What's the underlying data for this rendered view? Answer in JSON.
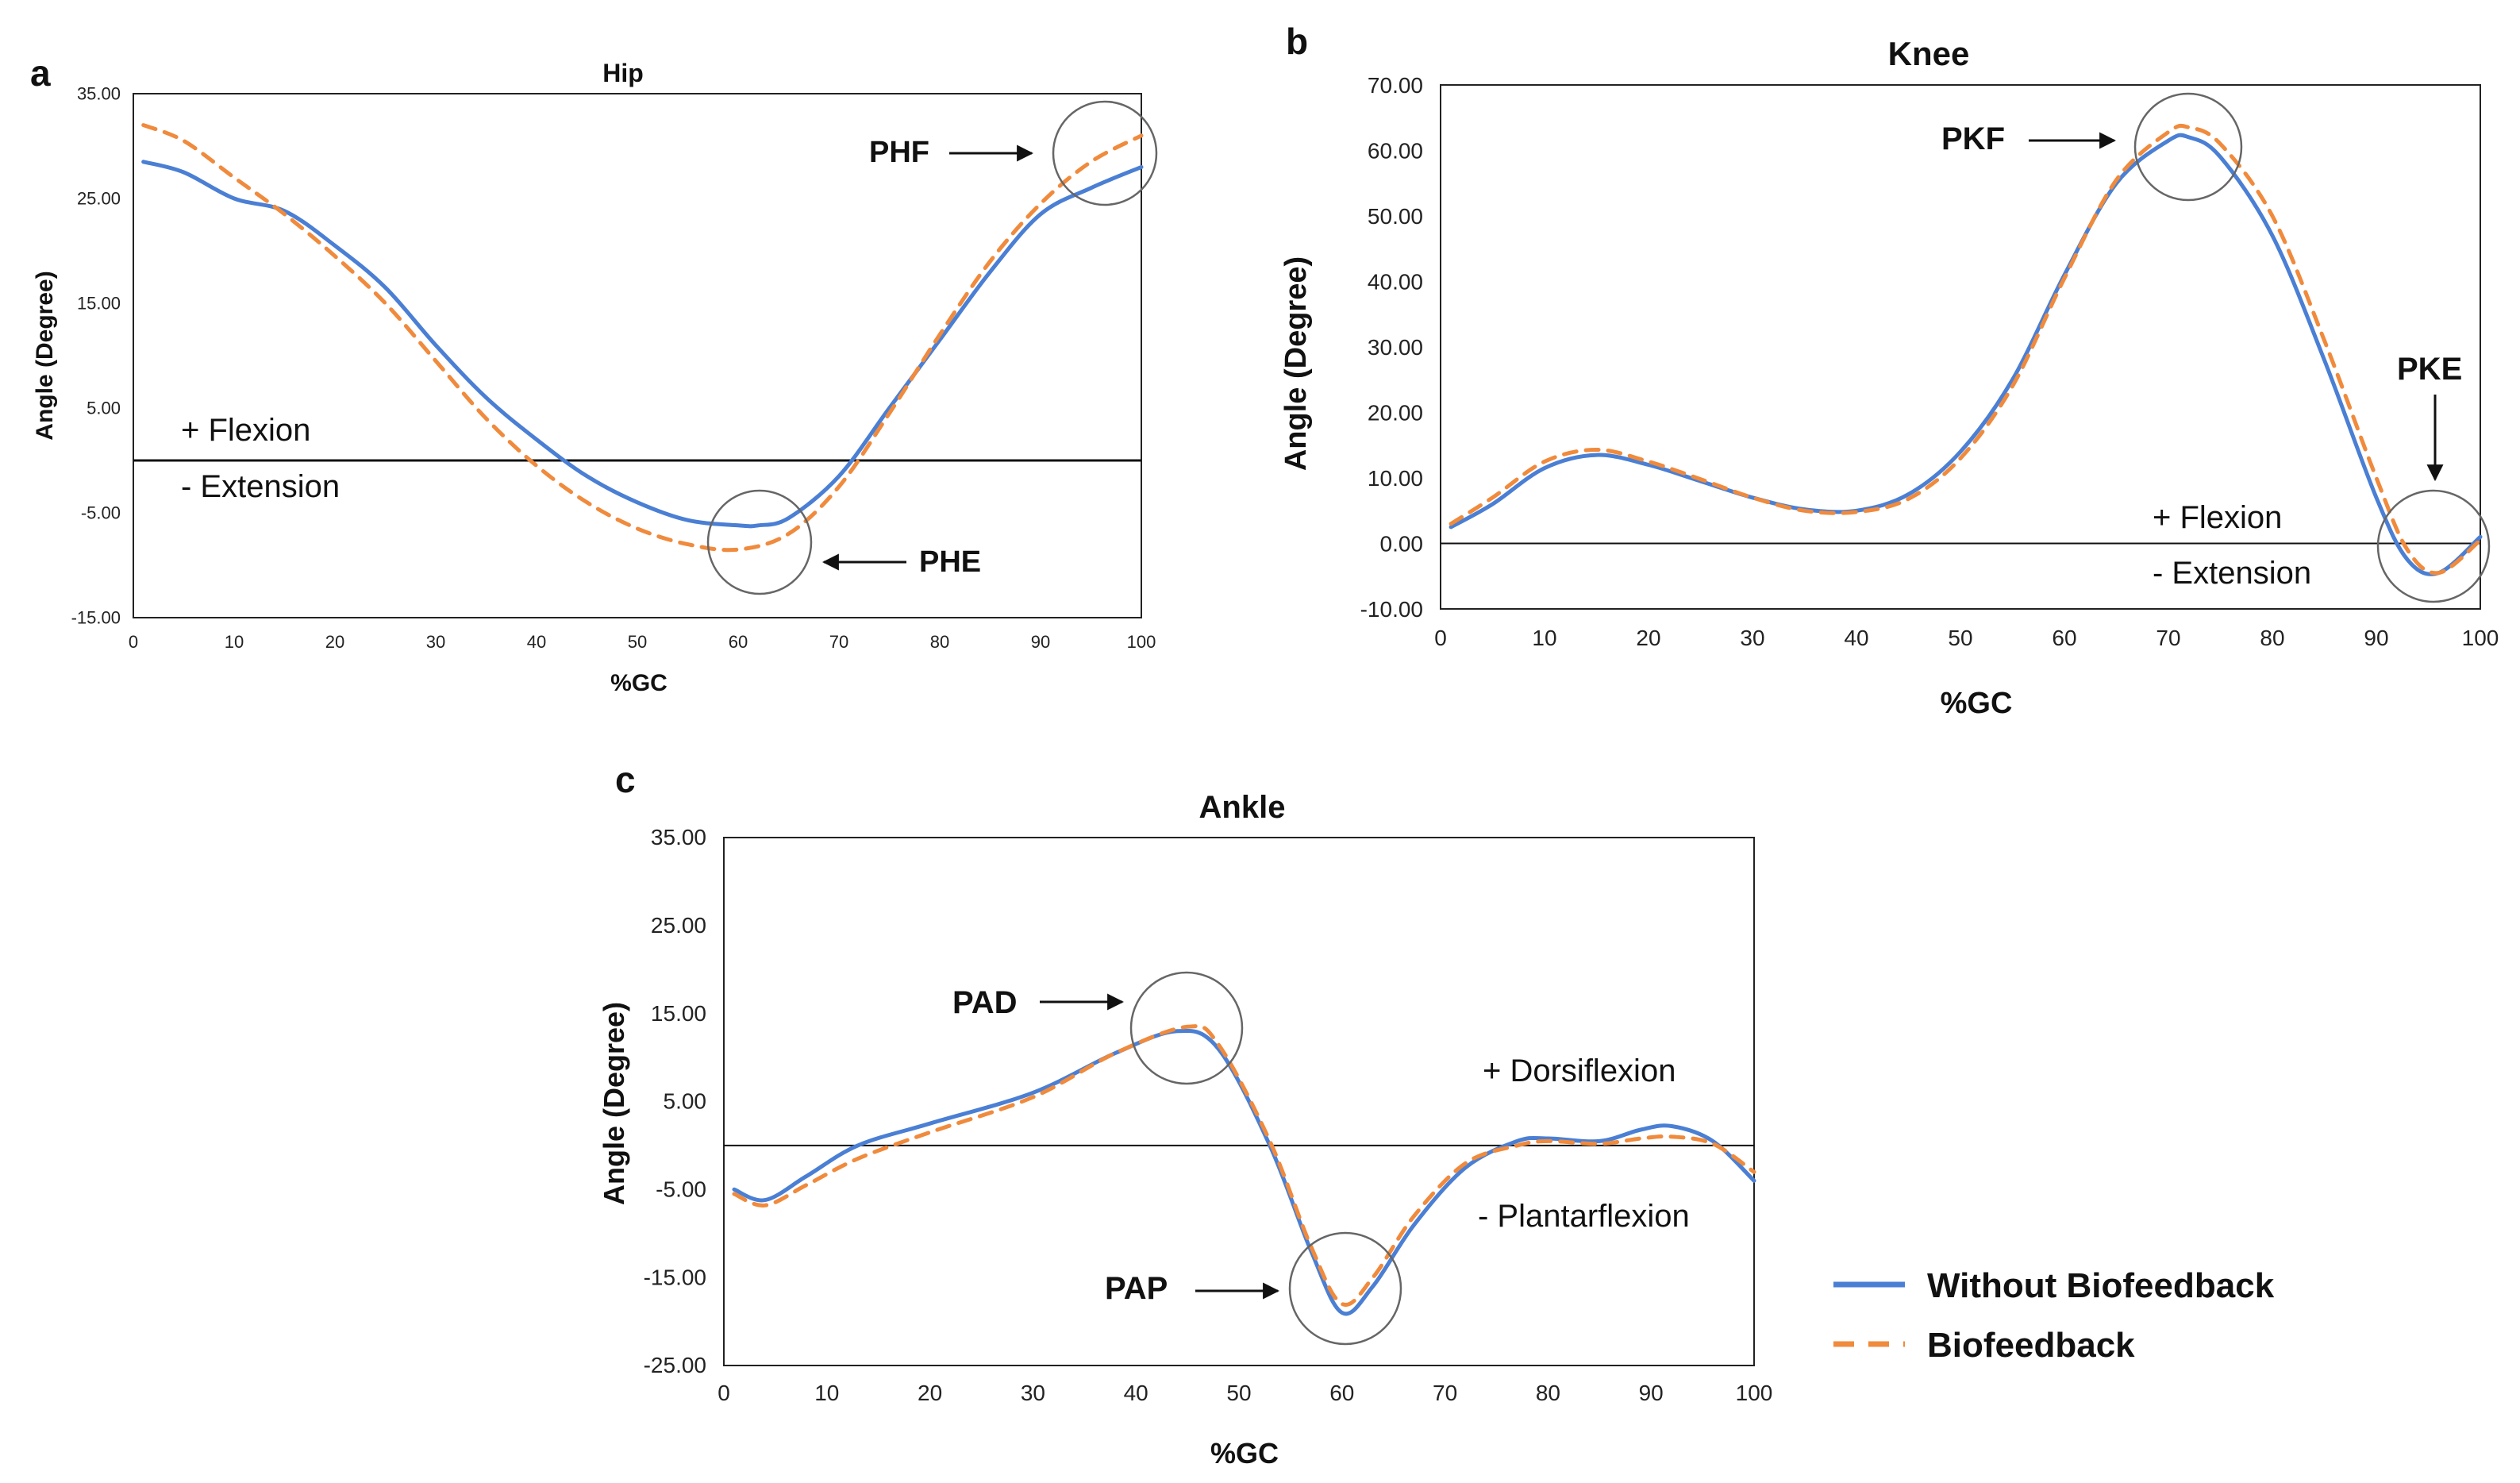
{
  "colors": {
    "without": "#4A7FD4",
    "biofeedback": "#F08A3C",
    "axis": "#222222"
  },
  "legend": {
    "items": [
      {
        "label": "Without Biofeedback",
        "style": "solid",
        "color": "#4A7FD4"
      },
      {
        "label": "Biofeedback",
        "style": "dashed",
        "color": "#F08A3C"
      }
    ]
  },
  "chart_data": [
    {
      "id": "hip",
      "panel_letter": "a",
      "type": "line",
      "title": "Hip",
      "xlabel": "%GC",
      "ylabel": "Angle (Degree)",
      "xlim": [
        0,
        100
      ],
      "ylim": [
        -15,
        35
      ],
      "xticks": [
        0,
        10,
        20,
        30,
        40,
        50,
        60,
        70,
        80,
        90,
        100
      ],
      "yticks": [
        -15,
        -5,
        5,
        15,
        25,
        35
      ],
      "ytick_labels": [
        "-15.00",
        "-5.00",
        "5.00",
        "15.00",
        "25.00",
        "35.00"
      ],
      "zero_line": true,
      "notes": {
        "above": "+ Flexion",
        "below": "- Extension"
      },
      "series": [
        {
          "name": "Without Biofeedback",
          "x": [
            1,
            5,
            10,
            15,
            20,
            25,
            30,
            35,
            40,
            45,
            50,
            55,
            60,
            62,
            65,
            70,
            75,
            80,
            85,
            90,
            95,
            100
          ],
          "y": [
            28.5,
            27.5,
            25,
            23.8,
            20.5,
            16.5,
            11,
            6,
            2,
            -1.5,
            -4,
            -5.7,
            -6.2,
            -6.2,
            -5.5,
            -1.5,
            5,
            11.5,
            18,
            23.5,
            26,
            28
          ]
        },
        {
          "name": "Biofeedback",
          "x": [
            1,
            5,
            10,
            15,
            20,
            25,
            30,
            35,
            40,
            45,
            50,
            55,
            60,
            65,
            70,
            75,
            80,
            85,
            90,
            95,
            100
          ],
          "y": [
            32,
            30.5,
            27,
            23.5,
            19.5,
            15,
            9.5,
            4,
            -0.5,
            -4,
            -6.5,
            -8,
            -8.5,
            -7,
            -2.5,
            4.5,
            12,
            19,
            24.5,
            28.5,
            31
          ]
        }
      ],
      "annotations": [
        {
          "label": "PHF",
          "x": 96.5,
          "y": 29
        },
        {
          "label": "PHE",
          "x": 62,
          "y": -7.5
        }
      ]
    },
    {
      "id": "knee",
      "panel_letter": "b",
      "type": "line",
      "title": "Knee",
      "xlabel": "%GC",
      "ylabel": "Angle (Degree)",
      "xlim": [
        0,
        100
      ],
      "ylim": [
        -10,
        70
      ],
      "xticks": [
        0,
        10,
        20,
        30,
        40,
        50,
        60,
        70,
        80,
        90,
        100
      ],
      "yticks": [
        -10,
        0,
        10,
        20,
        30,
        40,
        50,
        60,
        70
      ],
      "ytick_labels": [
        "-10.00",
        "0.00",
        "10.00",
        "20.00",
        "30.00",
        "40.00",
        "50.00",
        "60.00",
        "70.00"
      ],
      "zero_line": true,
      "notes": {
        "above": "+ Flexion",
        "below": "- Extension"
      },
      "series": [
        {
          "name": "Without Biofeedback",
          "x": [
            1,
            5,
            10,
            15,
            20,
            25,
            30,
            35,
            40,
            45,
            50,
            55,
            60,
            65,
            70,
            72,
            75,
            80,
            85,
            90,
            93,
            96,
            100
          ],
          "y": [
            2.5,
            6,
            11.5,
            13.5,
            12,
            9.5,
            7,
            5.2,
            5,
            7.5,
            14,
            25,
            41,
            55,
            61.5,
            62,
            59,
            47,
            28,
            7,
            -2.5,
            -4.5,
            1
          ]
        },
        {
          "name": "Biofeedback",
          "x": [
            1,
            5,
            10,
            15,
            20,
            25,
            30,
            35,
            40,
            45,
            50,
            55,
            60,
            65,
            70,
            72,
            75,
            80,
            85,
            90,
            93,
            96,
            100
          ],
          "y": [
            3,
            7,
            12.5,
            14.3,
            12.5,
            9.8,
            7,
            5,
            4.8,
            6.8,
            13,
            24,
            40.5,
            55.5,
            62.8,
            63.5,
            61,
            50,
            31,
            10,
            -1,
            -4.5,
            0.5
          ]
        }
      ],
      "annotations": [
        {
          "label": "PKF",
          "x": 71.5,
          "y": 61
        },
        {
          "label": "PKE",
          "x": 95.5,
          "y": 0
        }
      ]
    },
    {
      "id": "ankle",
      "panel_letter": "c",
      "type": "line",
      "title": "Ankle",
      "xlabel": "%GC",
      "ylabel": "Angle (Degree)",
      "xlim": [
        0,
        100
      ],
      "ylim": [
        -25,
        35
      ],
      "xticks": [
        0,
        10,
        20,
        30,
        40,
        50,
        60,
        70,
        80,
        90,
        100
      ],
      "yticks": [
        -25,
        -15,
        -5,
        5,
        15,
        25,
        35
      ],
      "ytick_labels": [
        "-25.00",
        "-15.00",
        "-5.00",
        "5.00",
        "15.00",
        "25.00",
        "35.00"
      ],
      "zero_line": true,
      "notes": {
        "above": "+ Dorsiflexion",
        "below": "- Plantarflexion"
      },
      "series": [
        {
          "name": "Without Biofeedback",
          "x": [
            1,
            4,
            8,
            13,
            20,
            30,
            38,
            44,
            48,
            53,
            57,
            60,
            63,
            67,
            72,
            77,
            80,
            85,
            89,
            92,
            96,
            100
          ],
          "y": [
            -5,
            -6.2,
            -3.5,
            0,
            2.5,
            6,
            10.5,
            13,
            11,
            0,
            -12,
            -19,
            -16,
            -9,
            -2.5,
            0.5,
            0.8,
            0.5,
            1.8,
            2.2,
            0.5,
            -4
          ]
        },
        {
          "name": "Biofeedback",
          "x": [
            1,
            4,
            8,
            13,
            20,
            30,
            38,
            45,
            48,
            53,
            57,
            60,
            63,
            67,
            72,
            77,
            80,
            85,
            89,
            92,
            96,
            100
          ],
          "y": [
            -5.5,
            -6.8,
            -4.5,
            -1.5,
            1.5,
            5.5,
            10.5,
            13.5,
            11.5,
            0.5,
            -11.5,
            -18,
            -15,
            -8,
            -2,
            0,
            0.5,
            0.2,
            0.8,
            1,
            0.2,
            -3
          ]
        }
      ],
      "annotations": [
        {
          "label": "PAD",
          "x": 45,
          "y": 13.5
        },
        {
          "label": "PAP",
          "x": 60.5,
          "y": -18.5
        }
      ]
    }
  ]
}
